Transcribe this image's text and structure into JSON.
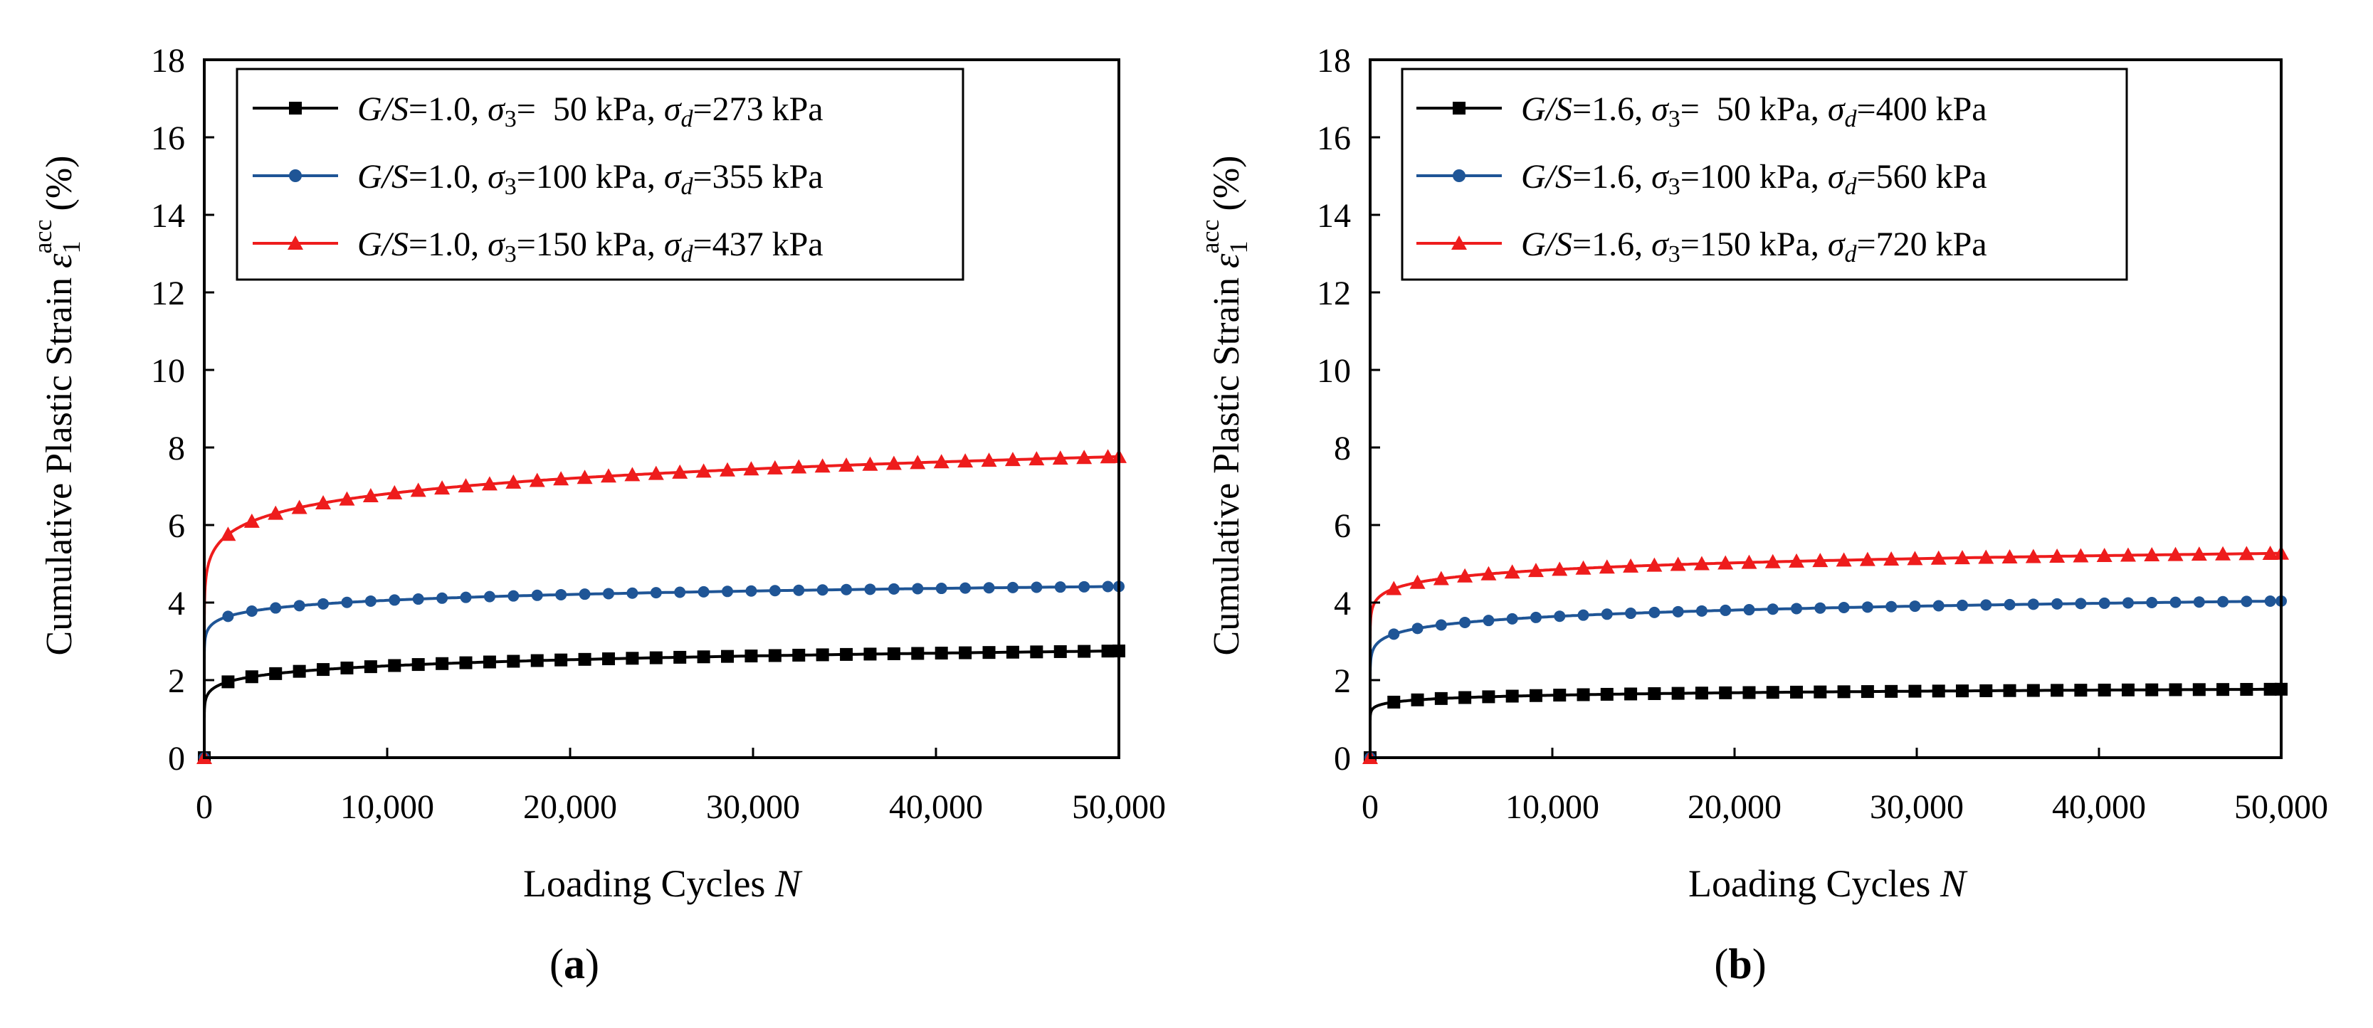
{
  "chart_data": [
    {
      "type": "line",
      "panel_label": "a",
      "xlabel": "Loading Cycles",
      "xlabel_var": "N",
      "ylabel": "Cumulative Plastic Strain",
      "ylabel_sym": "ε",
      "ylabel_sub": "1",
      "ylabel_sup": "acc",
      "ylabel_unit": "(%)",
      "xlim": [
        0,
        50000
      ],
      "ylim": [
        0,
        18
      ],
      "xticks": [
        0,
        10000,
        20000,
        30000,
        40000,
        50000
      ],
      "xtick_labels": [
        "0",
        "10,000",
        "20,000",
        "30,000",
        "40,000",
        "50,000"
      ],
      "yticks": [
        0,
        2,
        4,
        6,
        8,
        10,
        12,
        14,
        16,
        18
      ],
      "ytick_labels": [
        "0",
        "2",
        "4",
        "6",
        "8",
        "10",
        "12",
        "14",
        "16",
        "18"
      ],
      "legend_position": "top-left",
      "grid": false,
      "series": [
        {
          "name": "G/S=1.0, σ3= 50 kPa, σd=273 kPa",
          "gs": "G/S",
          "gs_val": "=1.0, ",
          "s3": "σ",
          "s3_sub": "3",
          "s3_val": "=  50 kPa, ",
          "sd": "σ",
          "sd_sub": "d",
          "sd_val": "=273 kPa",
          "color": "#000000",
          "marker": "square",
          "x0": 0,
          "y0": 0,
          "a": 1.0,
          "b": 0.09356
        },
        {
          "name": "G/S=1.0, σ3=100 kPa, σd=355 kPa",
          "gs": "G/S",
          "gs_val": "=1.0, ",
          "s3": "σ",
          "s3_sub": "3",
          "s3_val": "=100 kPa, ",
          "sd": "σ",
          "sd_sub": "d",
          "sd_val": "=355 kPa",
          "color": "#1f5596",
          "marker": "circle",
          "x0": 0,
          "y0": 0,
          "a": 2.5,
          "b": 0.05258
        },
        {
          "name": "G/S=1.0, σ3=150 kPa, σd=437 kPa",
          "gs": "G/S",
          "gs_val": "=1.0, ",
          "s3": "σ",
          "s3_sub": "3",
          "s3_val": "=150 kPa, ",
          "sd": "σ",
          "sd_sub": "d",
          "sd_val": "=437 kPa",
          "color": "#ee1c1c",
          "marker": "triangle",
          "x0": 0,
          "y0": 0,
          "a": 3.2,
          "b": 0.08192
        }
      ]
    },
    {
      "type": "line",
      "panel_label": "b",
      "xlabel": "Loading Cycles",
      "xlabel_var": "N",
      "ylabel": "Cumulative Plastic Strain",
      "ylabel_sym": "ε",
      "ylabel_sub": "1",
      "ylabel_sup": "acc",
      "ylabel_unit": "(%)",
      "xlim": [
        0,
        50000
      ],
      "ylim": [
        0,
        18
      ],
      "xticks": [
        0,
        10000,
        20000,
        30000,
        40000,
        50000
      ],
      "xtick_labels": [
        "0",
        "10,000",
        "20,000",
        "30,000",
        "40,000",
        "50,000"
      ],
      "yticks": [
        0,
        2,
        4,
        6,
        8,
        10,
        12,
        14,
        16,
        18
      ],
      "ytick_labels": [
        "0",
        "2",
        "4",
        "6",
        "8",
        "10",
        "12",
        "14",
        "16",
        "18"
      ],
      "legend_position": "top-left",
      "grid": false,
      "series": [
        {
          "name": "G/S=1.6, σ3= 50 kPa, σd=400 kPa",
          "gs": "G/S",
          "gs_val": "=1.6, ",
          "s3": "σ",
          "s3_sub": "3",
          "s3_val": "=  50 kPa, ",
          "sd": "σ",
          "sd_sub": "d",
          "sd_val": "=400 kPa",
          "color": "#000000",
          "marker": "square",
          "x0": 0,
          "y0": 0,
          "a": 0.95,
          "b": 0.05725
        },
        {
          "name": "G/S=1.6, σ3=100 kPa, σd=560 kPa",
          "gs": "G/S",
          "gs_val": "=1.6, ",
          "s3": "σ",
          "s3_sub": "3",
          "s3_val": "=100 kPa, ",
          "sd": "σ",
          "sd_sub": "d",
          "sd_val": "=560 kPa",
          "color": "#1f5596",
          "marker": "circle",
          "x0": 0,
          "y0": 0,
          "a": 2.0,
          "b": 0.06497
        },
        {
          "name": "G/S=1.6, σ3=150 kPa, σd=720 kPa",
          "gs": "G/S",
          "gs_val": "=1.6, ",
          "s3": "σ",
          "s3_sub": "3",
          "s3_val": "=150 kPa, ",
          "sd": "σ",
          "sd_sub": "d",
          "sd_val": "=720 kPa",
          "color": "#ee1c1c",
          "marker": "triangle",
          "x0": 0,
          "y0": 0,
          "a": 3.0,
          "b": 0.05208
        }
      ]
    }
  ]
}
